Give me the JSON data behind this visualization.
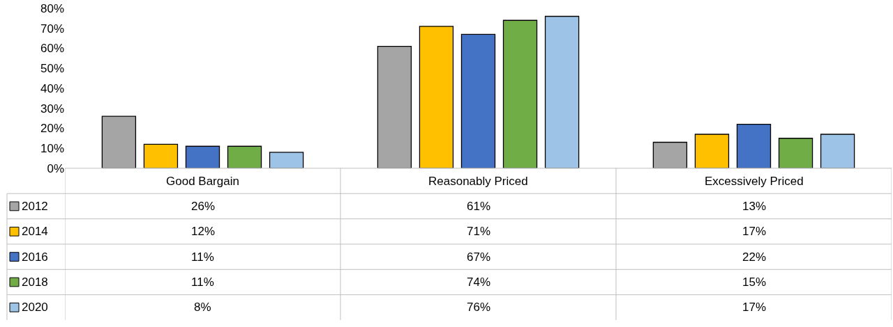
{
  "chart_data": {
    "type": "bar",
    "categories": [
      "Good Bargain",
      "Reasonably Priced",
      "Excessively Priced"
    ],
    "series": [
      {
        "name": "2012",
        "color": "#a5a5a5",
        "values": [
          26,
          61,
          13
        ],
        "value_labels": [
          "26%",
          "61%",
          "13%"
        ]
      },
      {
        "name": "2014",
        "color": "#ffc000",
        "values": [
          12,
          71,
          17
        ],
        "value_labels": [
          "12%",
          "71%",
          "17%"
        ]
      },
      {
        "name": "2016",
        "color": "#4472c4",
        "values": [
          11,
          67,
          22
        ],
        "value_labels": [
          "11%",
          "67%",
          "22%"
        ]
      },
      {
        "name": "2018",
        "color": "#70ad47",
        "values": [
          11,
          74,
          15
        ],
        "value_labels": [
          "11%",
          "74%",
          "15%"
        ]
      },
      {
        "name": "2020",
        "color": "#9dc3e6",
        "values": [
          8,
          76,
          17
        ],
        "value_labels": [
          "8%",
          "76%",
          "17%"
        ]
      }
    ],
    "ylim": [
      0,
      80
    ],
    "yticks": [
      {
        "value": 0,
        "label": "0%"
      },
      {
        "value": 10,
        "label": "10%"
      },
      {
        "value": 20,
        "label": "20%"
      },
      {
        "value": 30,
        "label": "30%"
      },
      {
        "value": 40,
        "label": "40%"
      },
      {
        "value": 50,
        "label": "50%"
      },
      {
        "value": 60,
        "label": "60%"
      },
      {
        "value": 70,
        "label": "70%"
      },
      {
        "value": 80,
        "label": "80%"
      }
    ],
    "legend": "bottom left"
  }
}
